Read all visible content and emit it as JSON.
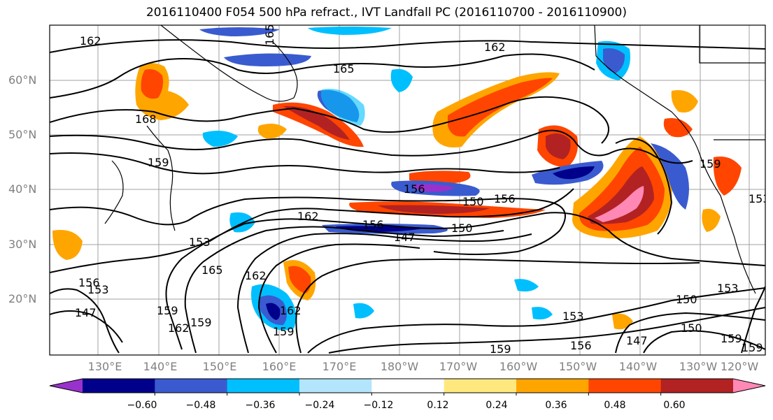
{
  "title": "2016110400 F054 500 hPa refract., IVT Landfall PC (2016110700 - 2016110900)",
  "lat_labels": [
    "60°N",
    "50°N",
    "40°N",
    "30°N",
    "20°N"
  ],
  "lon_labels": [
    "130°E",
    "140°E",
    "150°E",
    "160°E",
    "170°E",
    "180°W",
    "170°W",
    "160°W",
    "150°W",
    "140°W",
    "130°W",
    "120°W"
  ],
  "colorbar": {
    "colors": [
      "#9932cc",
      "#00008b",
      "#3a5bcf",
      "#00bfff",
      "#b3e5fc",
      "#ffffff",
      "#ffe97f",
      "#ffa500",
      "#ff4500",
      "#b22222",
      "#ff88b4"
    ],
    "tick_labels": [
      "−0.60",
      "−0.48",
      "−0.36",
      "−0.24",
      "−0.12",
      "0.12",
      "0.24",
      "0.36",
      "0.48",
      "0.60"
    ]
  },
  "contour_labels": [
    "162",
    "165",
    "165",
    "162",
    "168",
    "159",
    "162",
    "153",
    "156",
    "150",
    "156",
    "162",
    "156",
    "150",
    "147",
    "153",
    "165",
    "162",
    "162",
    "159",
    "156",
    "153",
    "147",
    "159",
    "162",
    "159",
    "156",
    "153",
    "150",
    "150",
    "147",
    "159",
    "159",
    "159",
    "150"
  ]
}
